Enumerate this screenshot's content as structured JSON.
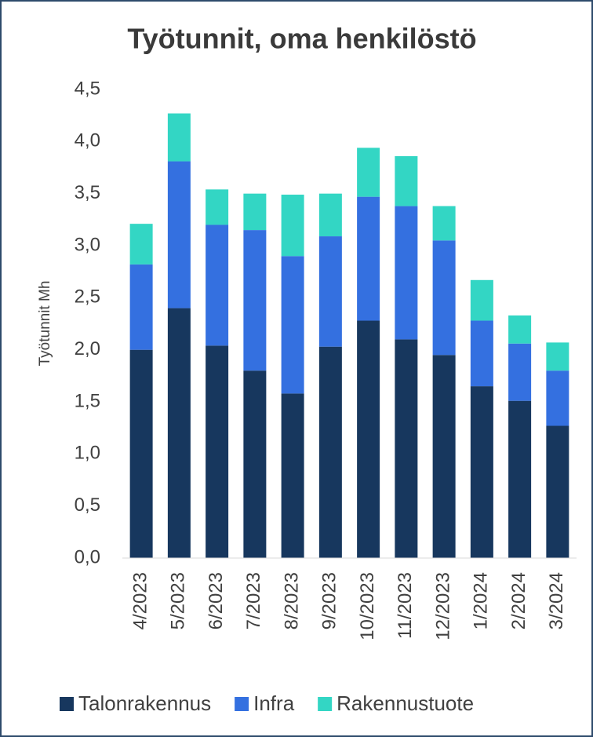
{
  "chart_data": {
    "type": "stacked_bar",
    "title": "Työtunnit, oma henkilöstö",
    "y_label": "Työtunnit Mh",
    "categories": [
      "4/2023",
      "5/2023",
      "6/2023",
      "7/2023",
      "8/2023",
      "9/2023",
      "10/2023",
      "11/2023",
      "12/2023",
      "1/2024",
      "2/2024",
      "3/2024"
    ],
    "series": [
      {
        "name": "Talonrakennus",
        "color": "#17375e",
        "values": [
          2.0,
          2.4,
          2.04,
          1.8,
          1.58,
          2.03,
          2.28,
          2.1,
          1.95,
          1.65,
          1.51,
          1.27
        ]
      },
      {
        "name": "Infra",
        "color": "#3470e0",
        "values": [
          0.82,
          1.41,
          1.16,
          1.35,
          1.32,
          1.06,
          1.19,
          1.28,
          1.1,
          0.63,
          0.55,
          0.53
        ]
      },
      {
        "name": "Rakennustuote",
        "color": "#33d6c4",
        "values": [
          0.39,
          0.46,
          0.34,
          0.35,
          0.59,
          0.41,
          0.47,
          0.48,
          0.33,
          0.39,
          0.27,
          0.27
        ]
      }
    ],
    "ylim": [
      0,
      4.5
    ],
    "yticks": [
      {
        "value": 0,
        "label": "0,0"
      },
      {
        "value": 0.5,
        "label": "0,5"
      },
      {
        "value": 1,
        "label": "1,0"
      },
      {
        "value": 1.5,
        "label": "1,5"
      },
      {
        "value": 2,
        "label": "2,0"
      },
      {
        "value": 2.5,
        "label": "2,5"
      },
      {
        "value": 3,
        "label": "3,0"
      },
      {
        "value": 3.5,
        "label": "3,5"
      },
      {
        "value": 4,
        "label": "4,0"
      },
      {
        "value": 4.5,
        "label": "4,5"
      }
    ],
    "grid": false,
    "legend": "bottom"
  }
}
